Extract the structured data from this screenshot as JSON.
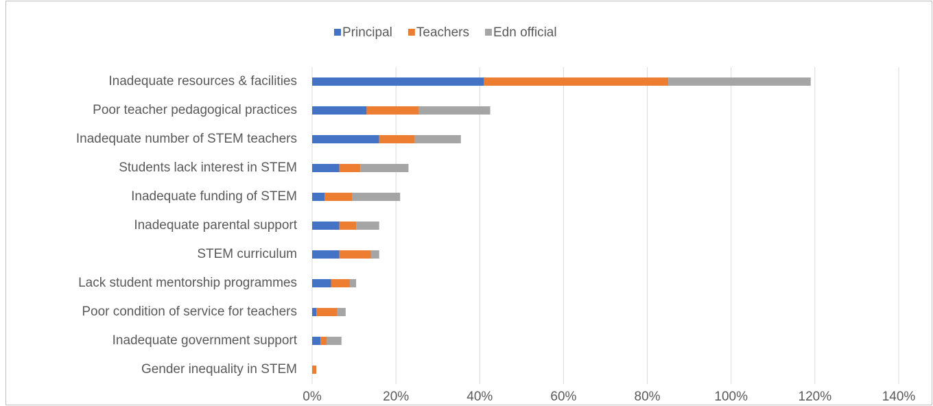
{
  "chart_data": {
    "type": "bar",
    "orientation": "horizontal",
    "stacked": true,
    "categories": [
      "Inadequate resources & facilities",
      "Poor teacher pedagogical practices",
      "Inadequate number of STEM teachers",
      "Students lack interest in STEM",
      "Inadequate funding of STEM",
      "Inadequate parental support",
      "STEM curriculum",
      "Lack student mentorship programmes",
      "Poor condition of service for teachers",
      "Inadequate government support",
      "Gender inequality in STEM"
    ],
    "series": [
      {
        "name": "Principal",
        "color": "#4472c4",
        "values": [
          41,
          13,
          16,
          6.5,
          3,
          6.5,
          6.5,
          4.5,
          1,
          2,
          0
        ]
      },
      {
        "name": "Teachers",
        "color": "#ed7d31",
        "values": [
          44,
          12.5,
          8.5,
          5,
          6.5,
          4,
          7.5,
          4.5,
          5,
          1.5,
          1
        ]
      },
      {
        "name": "Edn official",
        "color": "#a5a5a5",
        "values": [
          34,
          17,
          11,
          11.5,
          11.5,
          5.5,
          2,
          1.5,
          2,
          3.5,
          0
        ]
      }
    ],
    "xlim": [
      0,
      140
    ],
    "xticks": [
      {
        "value": 0,
        "label": "0%"
      },
      {
        "value": 20,
        "label": "20%"
      },
      {
        "value": 40,
        "label": "40%"
      },
      {
        "value": 60,
        "label": "60%"
      },
      {
        "value": 80,
        "label": "80%"
      },
      {
        "value": 100,
        "label": "100%"
      },
      {
        "value": 120,
        "label": "120%"
      },
      {
        "value": 140,
        "label": "140%"
      }
    ],
    "grid": true,
    "legend": "top"
  }
}
